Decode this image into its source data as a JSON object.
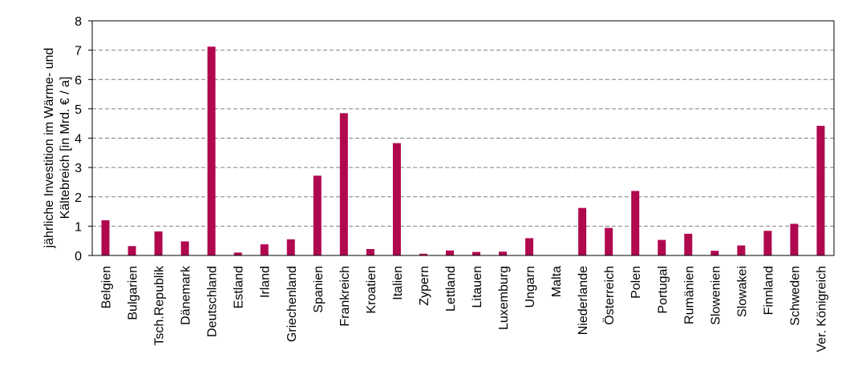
{
  "chart_data": {
    "type": "bar",
    "ylabel_lines": [
      "jährliche Investition im Wärme- und",
      "Kältebreich [in Mrd. € / a]"
    ],
    "xlabel": "",
    "ylim": [
      0,
      8
    ],
    "yticks": [
      "0",
      "1",
      "2",
      "3",
      "4",
      "5",
      "6",
      "7",
      "8"
    ],
    "grid": "horizontal dashed",
    "bar_color": "#b0084f",
    "categories": [
      "Belgien",
      "Bulgarien",
      "Tsch.Republik",
      "Dänemark",
      "Deutschland",
      "Estland",
      "Irland",
      "Griechenland",
      "Spanien",
      "Frankreich",
      "Kroatien",
      "Italien",
      "Zypern",
      "Lettland",
      "Litauen",
      "Luxemburg",
      "Ungarn",
      "Malta",
      "Niederlande",
      "Österreich",
      "Polen",
      "Portugal",
      "Rumänien",
      "Slowenien",
      "Slowakei",
      "Finnland",
      "Schweden",
      "Ver. Königreich"
    ],
    "values": [
      1.2,
      0.32,
      0.82,
      0.48,
      7.12,
      0.1,
      0.38,
      0.55,
      2.72,
      4.85,
      0.22,
      3.83,
      0.06,
      0.17,
      0.12,
      0.13,
      0.59,
      0.0,
      1.62,
      0.94,
      2.2,
      0.53,
      0.74,
      0.16,
      0.34,
      0.84,
      1.08,
      4.42
    ]
  }
}
